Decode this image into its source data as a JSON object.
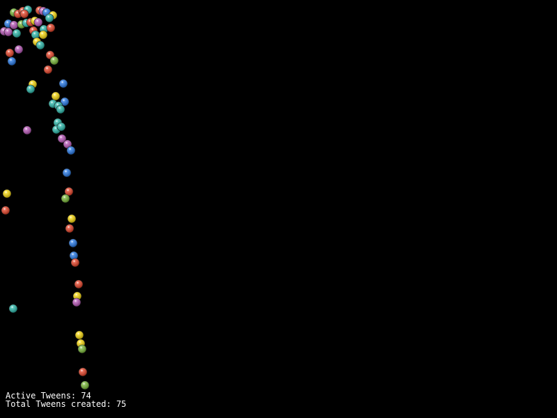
{
  "status": {
    "active_tweens": "Active Tweens: 74",
    "total_tweens": "Total Tweens created: 75"
  }
}
